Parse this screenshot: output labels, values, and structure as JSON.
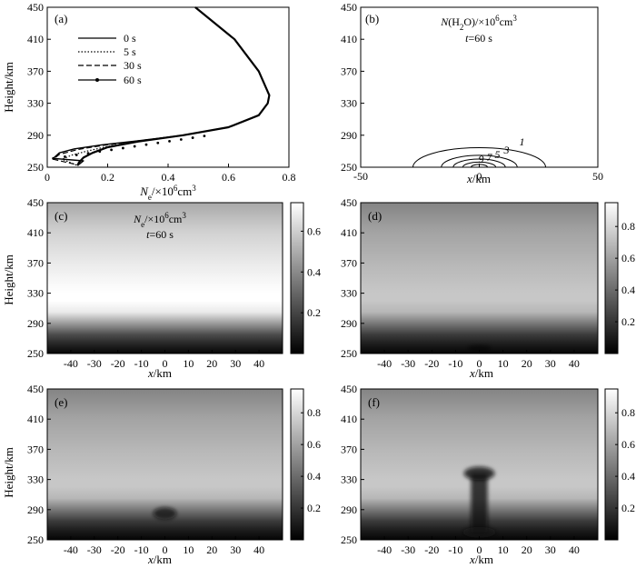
{
  "figure": {
    "panels": [
      {
        "id": "a",
        "label": "(a)",
        "type": "line",
        "ylabel": "Height/km",
        "xlabel_main": "N",
        "xlabel_sub": "e",
        "xlabel_unit": "/×10",
        "xlabel_sup": "6",
        "xlabel_tail": "cm",
        "xlabel_tail_sup": "3",
        "xticks": [
          "0",
          "0.2",
          "0.4",
          "0.6",
          "0.8"
        ],
        "yticks": [
          "250",
          "290",
          "330",
          "370",
          "410",
          "450"
        ],
        "legend": [
          {
            "label": "0 s",
            "style": "solid"
          },
          {
            "label": "5 s",
            "style": "dotted"
          },
          {
            "label": "30 s",
            "style": "dashed"
          },
          {
            "label": "60 s",
            "style": "solid-marker"
          }
        ]
      },
      {
        "id": "b",
        "label": "(b)",
        "type": "contour",
        "title_main": "N",
        "title_paren": "(H",
        "title_sub": "2",
        "title_rest": "O)/×10",
        "title_sup": "6",
        "title_tail": "cm",
        "title_tail_sup": "3",
        "subtitle_var": "t",
        "subtitle_rest": "=60 s",
        "xlabel_var": "x",
        "xlabel_rest": "/km",
        "xticks": [
          "-50",
          "0",
          "50"
        ],
        "yticks": [
          "250",
          "290",
          "330",
          "370",
          "410",
          "450"
        ],
        "contour_labels": [
          "1",
          "3",
          "5",
          "7",
          "9"
        ]
      },
      {
        "id": "c",
        "label": "(c)",
        "type": "heatmap",
        "ylabel": "Height/km",
        "title_main": "N",
        "title_sub": "e",
        "title_rest": "/×10",
        "title_sup": "6",
        "title_tail": "cm",
        "title_tail_sup": "3",
        "subtitle_var": "t",
        "subtitle_rest": "=60 s",
        "xticks": [
          "-40",
          "-30",
          "-20",
          "-10",
          "0",
          "10",
          "20",
          "30",
          "40"
        ],
        "yticks": [
          "250",
          "290",
          "330",
          "370",
          "410",
          "450"
        ],
        "cbar_ticks": [
          "0.2",
          "0.4",
          "0.6"
        ],
        "xlabel_var": "x",
        "xlabel_rest": "/km"
      },
      {
        "id": "d",
        "label": "(d)",
        "type": "heatmap",
        "xticks": [
          "-40",
          "-30",
          "-20",
          "-10",
          "0",
          "10",
          "20",
          "30",
          "40"
        ],
        "yticks": [
          "250",
          "290",
          "330",
          "370",
          "410",
          "450"
        ],
        "cbar_ticks": [
          "0.2",
          "0.4",
          "0.6",
          "0.8"
        ],
        "xlabel_var": "x",
        "xlabel_rest": "/km"
      },
      {
        "id": "e",
        "label": "(e)",
        "type": "heatmap",
        "ylabel": "Height/km",
        "xticks": [
          "-40",
          "-30",
          "-20",
          "-10",
          "0",
          "10",
          "20",
          "30",
          "40"
        ],
        "yticks": [
          "250",
          "290",
          "330",
          "370",
          "410",
          "450"
        ],
        "cbar_ticks": [
          "0.2",
          "0.4",
          "0.6",
          "0.8"
        ],
        "xlabel_var": "x",
        "xlabel_rest": "/km"
      },
      {
        "id": "f",
        "label": "(f)",
        "type": "heatmap",
        "xticks": [
          "-40",
          "-30",
          "-20",
          "-10",
          "0",
          "10",
          "20",
          "30",
          "40"
        ],
        "yticks": [
          "250",
          "290",
          "330",
          "370",
          "410",
          "450"
        ],
        "cbar_ticks": [
          "0.2",
          "0.4",
          "0.6",
          "0.8"
        ],
        "xlabel_var": "x",
        "xlabel_rest": "/km"
      }
    ]
  },
  "chart_data": [
    {
      "panel": "a",
      "type": "line",
      "xlim": [
        0,
        0.8
      ],
      "ylim": [
        250,
        450
      ],
      "series": [
        {
          "name": "0 s",
          "x": [
            0.49,
            0.62,
            0.7,
            0.735,
            0.73,
            0.7,
            0.6,
            0.45,
            0.3,
            0.2,
            0.15,
            0.12,
            0.105,
            0.1
          ],
          "y": [
            450,
            410,
            370,
            340,
            330,
            315,
            300,
            290,
            282,
            275,
            268,
            262,
            256,
            252
          ]
        },
        {
          "name": "5 s",
          "x": [
            0.49,
            0.62,
            0.7,
            0.735,
            0.73,
            0.7,
            0.6,
            0.45,
            0.3,
            0.2,
            0.13,
            0.08,
            0.05,
            0.1
          ],
          "y": [
            450,
            410,
            370,
            340,
            330,
            315,
            300,
            290,
            282,
            276,
            270,
            265,
            260,
            252
          ]
        },
        {
          "name": "30 s",
          "x": [
            0.49,
            0.62,
            0.7,
            0.735,
            0.73,
            0.7,
            0.6,
            0.45,
            0.3,
            0.18,
            0.1,
            0.04,
            0.02,
            0.1
          ],
          "y": [
            450,
            410,
            370,
            340,
            330,
            315,
            300,
            290,
            283,
            277,
            272,
            266,
            260,
            253
          ]
        },
        {
          "name": "60 s",
          "x": [
            0.49,
            0.62,
            0.7,
            0.735,
            0.73,
            0.7,
            0.6,
            0.45,
            0.3,
            0.18,
            0.09,
            0.04,
            0.02,
            0.12,
            0.1
          ],
          "y": [
            450,
            410,
            370,
            340,
            330,
            315,
            300,
            290,
            283,
            278,
            273,
            268,
            261,
            258,
            252
          ]
        }
      ]
    },
    {
      "panel": "b",
      "type": "contour",
      "xlim": [
        -50,
        50
      ],
      "ylim": [
        250,
        450
      ],
      "center": [
        0,
        252
      ],
      "levels": [
        {
          "label": "1",
          "rx": 28,
          "ry": 26
        },
        {
          "label": "3",
          "rx": 16,
          "ry": 16
        },
        {
          "label": "5",
          "rx": 11,
          "ry": 11
        },
        {
          "label": "7",
          "rx": 7,
          "ry": 7
        },
        {
          "label": "9",
          "rx": 3.5,
          "ry": 4
        }
      ]
    },
    {
      "panel": "c",
      "type": "heatmap",
      "xlim": [
        -50,
        50
      ],
      "ylim": [
        250,
        450
      ],
      "profile": [
        {
          "h": 250,
          "v": 0.02
        },
        {
          "h": 262,
          "v": 0.1
        },
        {
          "h": 275,
          "v": 0.22
        },
        {
          "h": 290,
          "v": 0.45
        },
        {
          "h": 305,
          "v": 0.68
        },
        {
          "h": 320,
          "v": 0.74
        },
        {
          "h": 330,
          "v": 0.74
        },
        {
          "h": 350,
          "v": 0.71
        },
        {
          "h": 370,
          "v": 0.68
        },
        {
          "h": 410,
          "v": 0.61
        },
        {
          "h": 450,
          "v": 0.49
        }
      ],
      "vmax": 0.74
    },
    {
      "panel": "d",
      "type": "heatmap",
      "xlim": [
        -50,
        50
      ],
      "ylim": [
        250,
        450
      ],
      "vmax": 0.95,
      "depletion": {
        "x": 0,
        "h": 257,
        "rx": 5,
        "ry": 4,
        "depth": 0.5
      }
    },
    {
      "panel": "e",
      "type": "heatmap",
      "xlim": [
        -50,
        50
      ],
      "ylim": [
        250,
        450
      ],
      "vmax": 0.95,
      "depletion": {
        "x": 0,
        "h": 285,
        "rx": 5,
        "ry": 8,
        "depth": 0.75
      }
    },
    {
      "panel": "f",
      "type": "heatmap",
      "xlim": [
        -50,
        50
      ],
      "ylim": [
        250,
        450
      ],
      "vmax": 0.95,
      "depletion": {
        "x": 0,
        "h": 338,
        "rx": 6.5,
        "ry": 9,
        "depth": 0.8,
        "stem_to": 260,
        "stem_rx": 3.5
      }
    }
  ]
}
